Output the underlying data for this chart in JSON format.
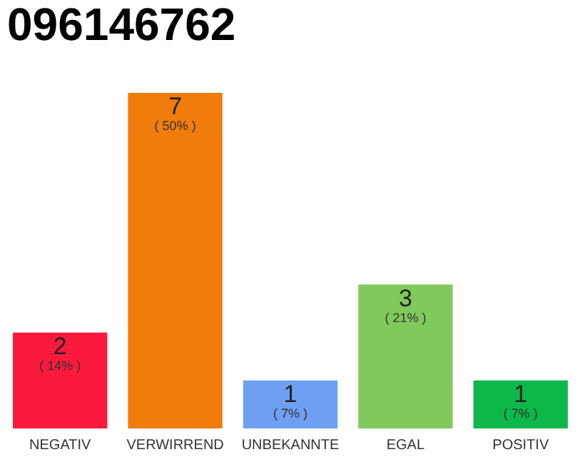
{
  "chart_data": {
    "type": "bar",
    "title": "096146762",
    "categories": [
      "NEGATIV",
      "VERWIRREND",
      "UNBEKANNTE",
      "EGAL",
      "POSITIV"
    ],
    "values": [
      2,
      7,
      1,
      3,
      1
    ],
    "colors": [
      "#fb1a3c",
      "#f07c0c",
      "#6e9ff0",
      "#80c95c",
      "#0cb84a"
    ],
    "data_labels": true,
    "annotations": [
      {
        "text": "( 14% )",
        "x": "NEGATIV",
        "y": 2
      },
      {
        "text": "( 50% )",
        "x": "VERWIRREND",
        "y": 7
      },
      {
        "text": "( 7% )",
        "x": "UNBEKANNTE",
        "y": 1
      },
      {
        "text": "( 21% )",
        "x": "EGAL",
        "y": 3
      },
      {
        "text": "( 7% )",
        "x": "POSITIV",
        "y": 1
      }
    ]
  }
}
